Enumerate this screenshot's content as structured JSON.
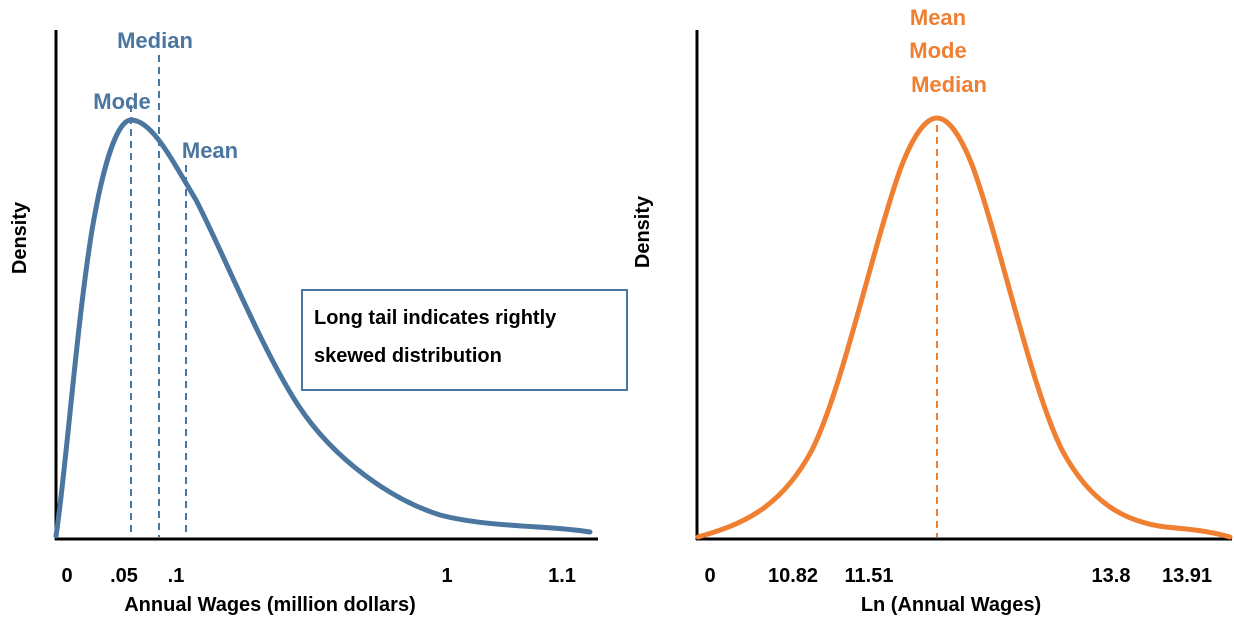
{
  "chart_data": [
    {
      "type": "line",
      "x": [
        0,
        0.05,
        0.1,
        1,
        1.1
      ],
      "xticks": [
        "0",
        ".05",
        ".1",
        "1",
        "1.1"
      ],
      "xlabel": "Annual Wages (million dollars)",
      "ylabel": "Density",
      "series": [
        {
          "shape": "right-skewed",
          "color": "#4a76a0"
        }
      ],
      "annotations": {
        "mode": "Mode",
        "median": "Median",
        "mean": "Mean",
        "callout": [
          "Long tail indicates rightly",
          "skewed distribution"
        ]
      },
      "colors": {
        "curve": "#4a76a0",
        "text": "#4a76a0",
        "box": "#4a76a0"
      }
    },
    {
      "type": "line",
      "x": [
        0,
        10.82,
        11.51,
        13.8,
        13.91
      ],
      "xticks": [
        "0",
        "10.82",
        "11.51",
        "13.8",
        "13.91"
      ],
      "xlabel": "Ln (Annual Wages)",
      "ylabel": "Density",
      "series": [
        {
          "shape": "symmetric",
          "color": "#ef7f31"
        }
      ],
      "annotations": {
        "labels": [
          "Mean",
          "Mode",
          "Median"
        ]
      },
      "colors": {
        "curve": "#ef7f31",
        "text": "#ef7f31"
      }
    }
  ]
}
